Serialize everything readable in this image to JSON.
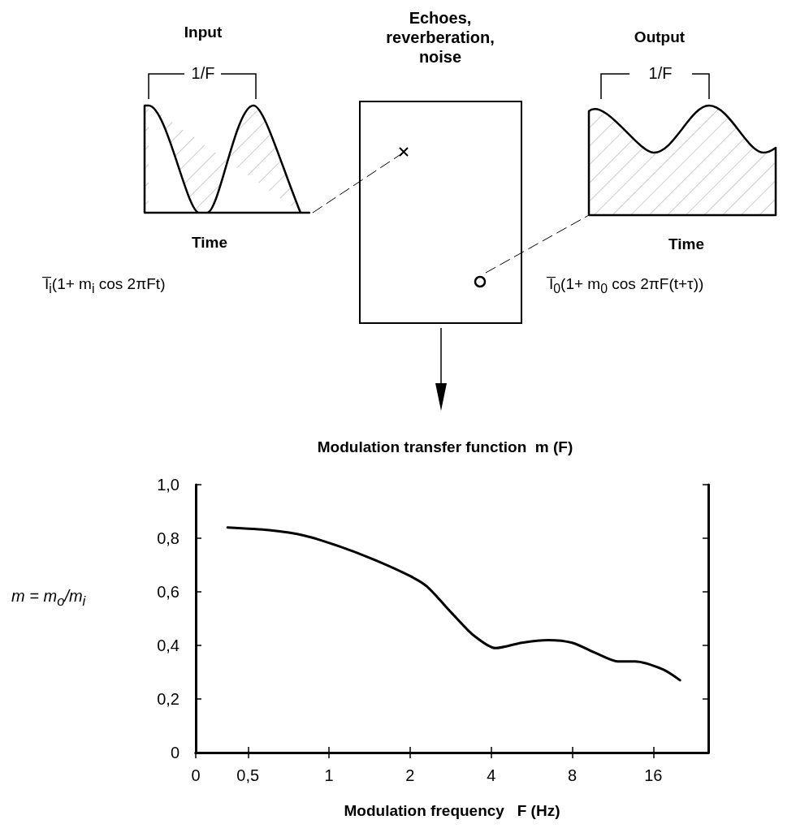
{
  "chart_data": {
    "type": "line",
    "title": "Modulation transfer function  m (F)",
    "xlabel": "Modulation frequency   F (Hz)",
    "ylabel": "m = m$_{o}$/m$_{i}$",
    "annotations": [
      "Input",
      "1/F",
      "Time",
      "I̅$_{i}$(1+ m$_{i}$ cos 2πFt)",
      "Echoes, reverberation, noise",
      "Output",
      "1/F",
      "Time",
      "I̅$_{0}$(1+ m$_{0}$ cos 2πF(t+τ))"
    ],
    "x": [
      0.42,
      0.6,
      0.81,
      1.09,
      1.47,
      1.99,
      2.31,
      2.86,
      3.42,
      4.15,
      5.2,
      6.5,
      8,
      9.85,
      11.8,
      13.7,
      17.4,
      20.1
    ],
    "series": [
      {
        "color": "#000000",
        "values": [
          0.84,
          0.83,
          0.81,
          0.77,
          0.72,
          0.66,
          0.62,
          0.52,
          0.44,
          0.39,
          0.41,
          0.42,
          0.41,
          0.37,
          0.34,
          0.34,
          0.31,
          0.27
        ]
      }
    ],
    "log": "x",
    "xlim": [
      0.32,
      25.6
    ],
    "xticks": [
      {
        "value": 0.32,
        "label": "0"
      },
      {
        "value": 0.5,
        "label": "0,5"
      },
      1,
      2,
      4,
      8,
      16
    ],
    "ylim": [
      0,
      1
    ],
    "yticks": [
      0,
      {
        "value": 0.2,
        "label": "0,2"
      },
      {
        "value": 0.4,
        "label": "0,4"
      },
      {
        "value": 0.6,
        "label": "0,6"
      },
      {
        "value": 0.8,
        "label": "0,8"
      },
      {
        "value": 1,
        "label": "1,0"
      }
    ],
    "marker": "none",
    "line_style": "solid",
    "grid": false
  }
}
